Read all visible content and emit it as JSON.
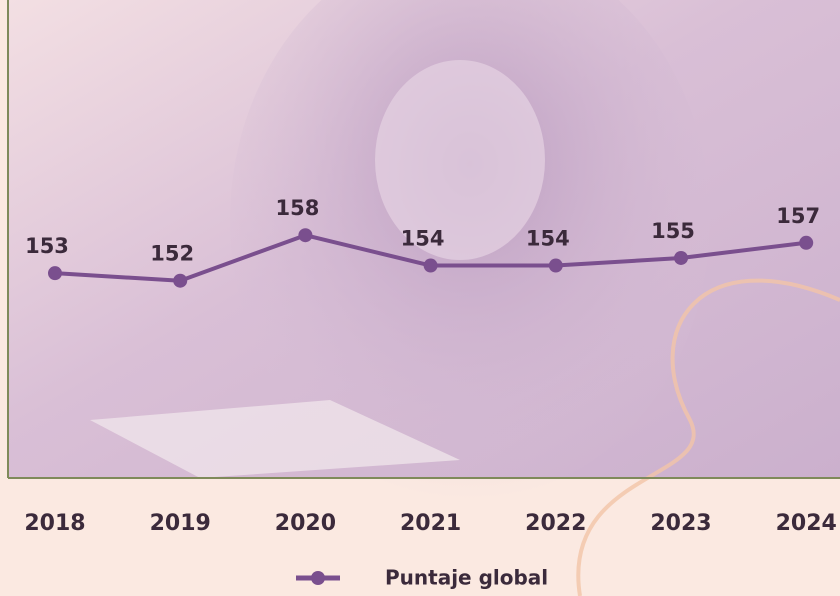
{
  "chart_data": {
    "type": "line",
    "categories": [
      "2018",
      "2019",
      "2020",
      "2021",
      "2022",
      "2023",
      "2024"
    ],
    "series": [
      {
        "name": "Puntaje global",
        "color": "#7a4f8e",
        "values": [
          153,
          152,
          158,
          154,
          154,
          155,
          157
        ]
      }
    ],
    "ylim": [
      126,
      189
    ],
    "grid": false,
    "legend": "bottom"
  }
}
